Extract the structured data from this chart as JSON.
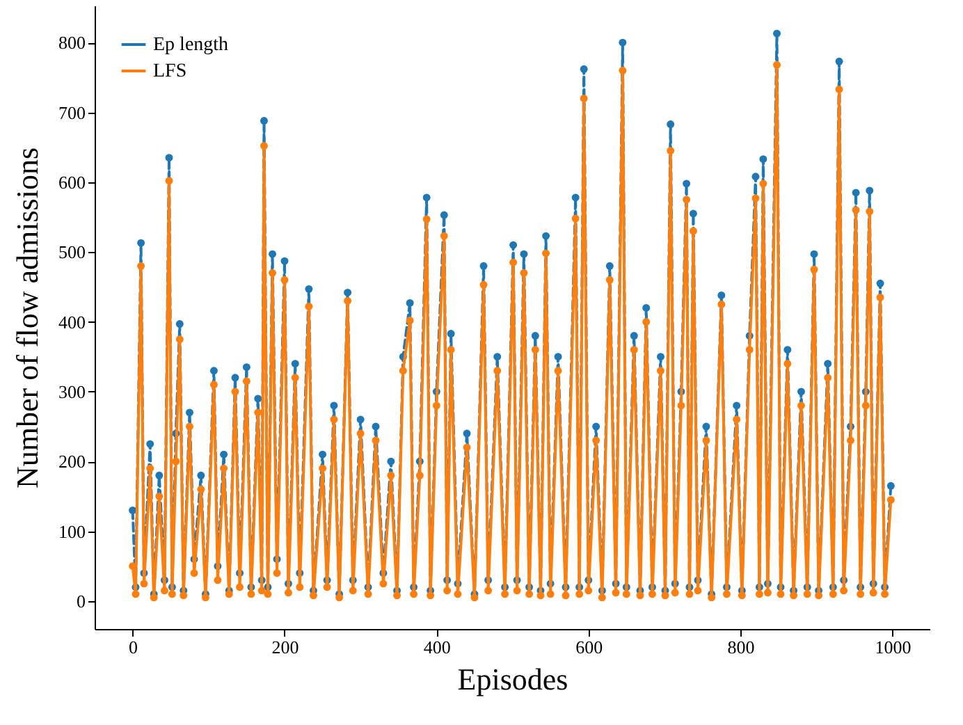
{
  "chart_data": {
    "type": "line",
    "xlabel": "Episodes",
    "ylabel": "Number of flow admissions",
    "x": [
      0,
      4,
      11,
      15,
      23,
      28,
      35,
      42,
      48,
      52,
      57,
      62,
      67,
      75,
      81,
      90,
      96,
      107,
      112,
      120,
      127,
      135,
      141,
      150,
      156,
      165,
      170,
      173,
      178,
      184,
      190,
      200,
      205,
      214,
      220,
      232,
      238,
      250,
      256,
      265,
      272,
      283,
      290,
      300,
      310,
      320,
      330,
      340,
      348,
      356,
      365,
      370,
      378,
      387,
      392,
      400,
      410,
      414,
      419,
      428,
      440,
      450,
      462,
      468,
      480,
      490,
      501,
      506,
      515,
      522,
      530,
      537,
      544,
      550,
      560,
      570,
      583,
      588,
      594,
      600,
      610,
      618,
      628,
      636,
      645,
      650,
      660,
      668,
      676,
      684,
      695,
      701,
      708,
      714,
      722,
      729,
      733,
      738,
      744,
      755,
      762,
      775,
      782,
      795,
      802,
      812,
      820,
      825,
      830,
      836,
      848,
      853,
      862,
      870,
      880,
      888,
      897,
      903,
      915,
      922,
      930,
      936,
      945,
      952,
      958,
      965,
      970,
      975,
      984,
      990,
      998
    ],
    "series": [
      {
        "name": "Ep length",
        "color": "#1f77b4",
        "line_style": "dashed",
        "values": [
          130,
          20,
          513,
          40,
          225,
          10,
          180,
          30,
          635,
          20,
          240,
          397,
          15,
          270,
          60,
          180,
          10,
          330,
          50,
          210,
          15,
          320,
          40,
          335,
          20,
          290,
          30,
          688,
          20,
          497,
          60,
          487,
          25,
          340,
          40,
          447,
          15,
          210,
          30,
          280,
          10,
          442,
          30,
          260,
          20,
          250,
          40,
          200,
          15,
          350,
          427,
          20,
          200,
          578,
          15,
          300,
          553,
          30,
          383,
          25,
          240,
          10,
          480,
          30,
          350,
          20,
          510,
          30,
          497,
          20,
          380,
          15,
          523,
          25,
          350,
          20,
          578,
          20,
          762,
          30,
          250,
          15,
          480,
          25,
          800,
          20,
          380,
          15,
          420,
          20,
          350,
          15,
          683,
          25,
          300,
          598,
          20,
          555,
          30,
          250,
          10,
          438,
          20,
          280,
          15,
          380,
          608,
          20,
          633,
          25,
          813,
          20,
          360,
          15,
          300,
          20,
          497,
          15,
          340,
          20,
          773,
          30,
          250,
          585,
          20,
          300,
          588,
          25,
          455,
          20,
          165
        ]
      },
      {
        "name": "LFS",
        "color": "#ff7f0e",
        "line_style": "solid",
        "values": [
          50,
          10,
          480,
          25,
          190,
          5,
          150,
          15,
          602,
          10,
          200,
          375,
          8,
          250,
          40,
          160,
          5,
          310,
          30,
          190,
          10,
          300,
          20,
          315,
          10,
          270,
          15,
          652,
          10,
          470,
          40,
          460,
          12,
          320,
          20,
          422,
          8,
          190,
          20,
          260,
          5,
          430,
          15,
          240,
          10,
          230,
          25,
          180,
          8,
          330,
          402,
          10,
          180,
          547,
          8,
          280,
          523,
          15,
          360,
          10,
          220,
          5,
          453,
          15,
          330,
          10,
          485,
          15,
          470,
          10,
          360,
          8,
          498,
          10,
          330,
          8,
          548,
          10,
          720,
          15,
          230,
          5,
          460,
          12,
          760,
          10,
          360,
          8,
          400,
          10,
          330,
          8,
          645,
          12,
          280,
          575,
          10,
          530,
          15,
          230,
          5,
          425,
          10,
          260,
          8,
          360,
          577,
          10,
          598,
          12,
          768,
          10,
          340,
          8,
          280,
          10,
          475,
          8,
          320,
          10,
          733,
          15,
          230,
          560,
          10,
          280,
          558,
          12,
          435,
          10,
          145
        ]
      }
    ],
    "xlim": [
      -50,
      1049
    ],
    "ylim": [
      -40,
      853
    ],
    "xticks": [
      0,
      200,
      400,
      600,
      800,
      1000
    ],
    "yticks": [
      0,
      100,
      200,
      300,
      400,
      500,
      600,
      700,
      800
    ],
    "grid": false,
    "legend": "top left",
    "marker": "circle"
  }
}
